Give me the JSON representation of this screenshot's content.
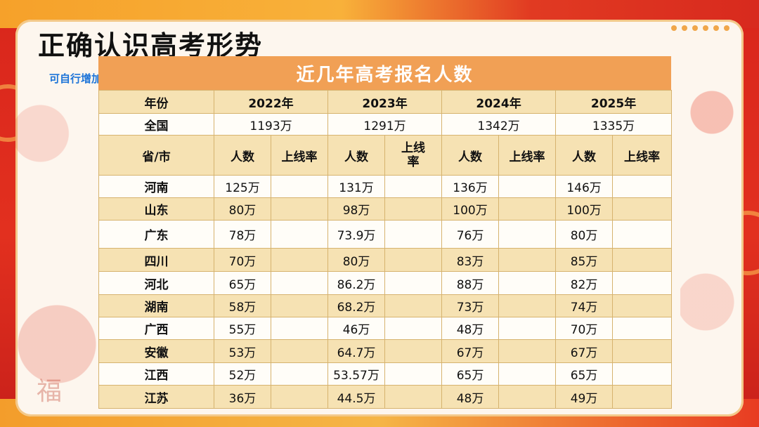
{
  "page": {
    "title": "正确认识高考形势",
    "note": "可自行增加本省上线率",
    "decoration_char": "福"
  },
  "table": {
    "title": "近几年高考报名人数",
    "year_label": "年份",
    "years": [
      "2022年",
      "2023年",
      "2024年",
      "2025年"
    ],
    "national_label": "全国",
    "national": [
      "1193万",
      "1291万",
      "1342万",
      "1335万"
    ],
    "province_label": "省/市",
    "count_label": "人数",
    "rate_label": "上线率",
    "rows": [
      {
        "province": "河南",
        "values": [
          "125万",
          "",
          "131万",
          "",
          "136万",
          "",
          "146万",
          ""
        ]
      },
      {
        "province": "山东",
        "values": [
          "80万",
          "",
          "98万",
          "",
          "100万",
          "",
          "100万",
          ""
        ]
      },
      {
        "province": "广东",
        "values": [
          "78万",
          "",
          "73.9万",
          "",
          "76万",
          "",
          "80万",
          ""
        ]
      },
      {
        "province": "四川",
        "values": [
          "70万",
          "",
          "80万",
          "",
          "83万",
          "",
          "85万",
          ""
        ]
      },
      {
        "province": "河北",
        "values": [
          "65万",
          "",
          "86.2万",
          "",
          "88万",
          "",
          "82万",
          ""
        ]
      },
      {
        "province": "湖南",
        "values": [
          "58万",
          "",
          "68.2万",
          "",
          "73万",
          "",
          "74万",
          ""
        ]
      },
      {
        "province": "广西",
        "values": [
          "55万",
          "",
          "46万",
          "",
          "48万",
          "",
          "70万",
          ""
        ]
      },
      {
        "province": "安徽",
        "values": [
          "53万",
          "",
          "64.7万",
          "",
          "67万",
          "",
          "67万",
          ""
        ]
      },
      {
        "province": "江西",
        "values": [
          "52万",
          "",
          "53.57万",
          "",
          "65万",
          "",
          "65万",
          ""
        ]
      },
      {
        "province": "江苏",
        "values": [
          "36万",
          "",
          "44.5万",
          "",
          "48万",
          "",
          "49万",
          ""
        ]
      }
    ]
  },
  "colors": {
    "header_orange": "#f1a055",
    "row_yellow": "#f6e2b3",
    "row_white": "#fffdf8",
    "note_blue": "#1d74d8",
    "background_red": "#d9261c"
  }
}
